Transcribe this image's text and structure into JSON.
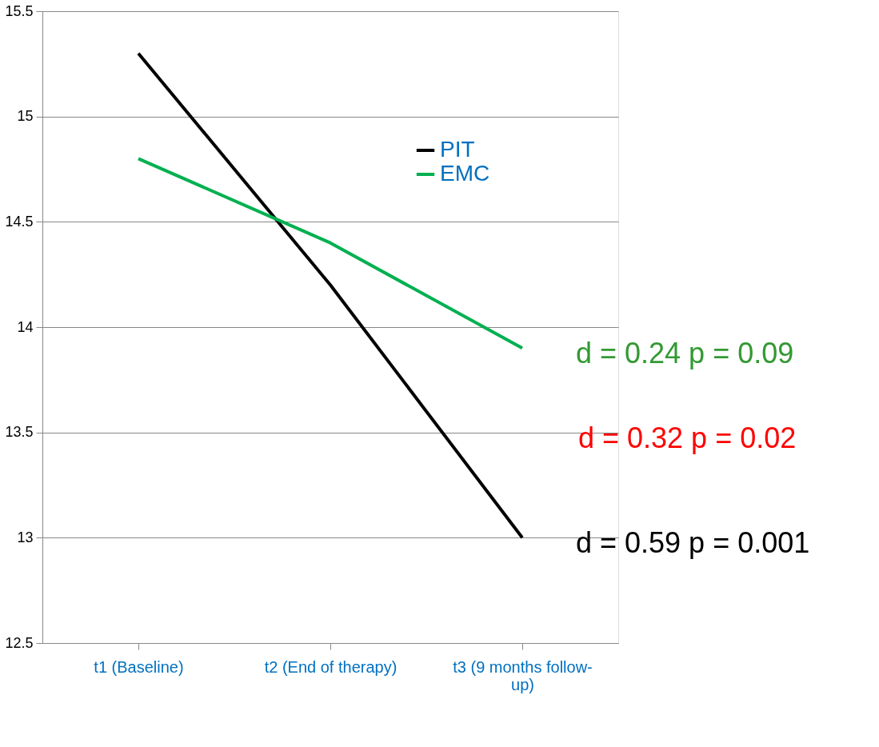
{
  "chart_data": {
    "type": "line",
    "categories": [
      "t1 (Baseline)",
      "t2 (End of therapy)",
      "t3 (9 months follow-up)"
    ],
    "series": [
      {
        "name": "PIT",
        "color": "#000000",
        "values": [
          15.3,
          14.2,
          13.0
        ]
      },
      {
        "name": "EMC",
        "color": "#00b050",
        "values": [
          14.8,
          14.4,
          13.9
        ]
      }
    ],
    "ylim": [
      12.5,
      15.5
    ],
    "yticks": [
      12.5,
      13,
      13.5,
      14,
      14.5,
      15,
      15.5
    ],
    "grid": "y",
    "legend": "top right",
    "marker": "none",
    "line_style": "solid",
    "annotations": [
      {
        "text": "d = 0.24 p = 0.09",
        "x": "t3 (9 months follow-up)",
        "y": 13.9
      },
      "d = 0.32 p = 0.02",
      {
        "text": "d = 0.59 p = 0.001",
        "x": "t3 (9 months follow-up)",
        "y": 13.0
      }
    ]
  }
}
